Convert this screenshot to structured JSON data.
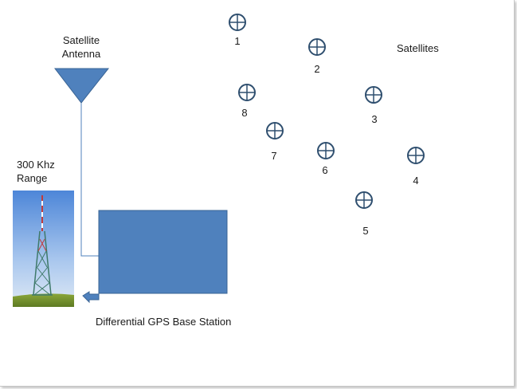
{
  "labels": {
    "antenna_line1": "Satellite",
    "antenna_line2": "Antenna",
    "satellites": "Satellites",
    "range_line1": "300 Khz",
    "range_line2": "Range",
    "base_station": "Differential GPS Base Station"
  },
  "satellites": [
    {
      "id": "1"
    },
    {
      "id": "2"
    },
    {
      "id": "3"
    },
    {
      "id": "4"
    },
    {
      "id": "5"
    },
    {
      "id": "6"
    },
    {
      "id": "7"
    },
    {
      "id": "8"
    }
  ],
  "colors": {
    "box_fill": "#4f81bd",
    "box_stroke": "#3a6494",
    "satellite": "#2f4f6f",
    "sky_top": "#5b8fd6",
    "grass": "#6b8a2a"
  },
  "icons": [
    "satellite-icon",
    "tower-image",
    "arrow-left-icon",
    "antenna-icon"
  ]
}
